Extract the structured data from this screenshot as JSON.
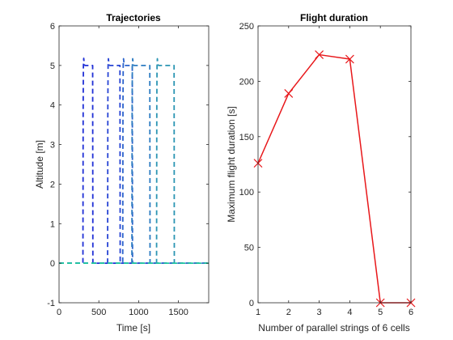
{
  "chart_data": [
    {
      "type": "line",
      "title": "Trajectories",
      "xlabel": "Time [s]",
      "ylabel": "Altitude [m]",
      "xlim": [
        0,
        1880
      ],
      "ylim": [
        -1,
        6
      ],
      "xticks": [
        0,
        500,
        1000,
        1500
      ],
      "yticks": [
        -1,
        0,
        1,
        2,
        3,
        4,
        5,
        6
      ],
      "line_style": "dashed",
      "grid": false,
      "series": [
        {
          "color": "#1f2fd6",
          "x": [
            0,
            300,
            303,
            306,
            310,
            318,
            326,
            332,
            422,
            425,
            1880
          ],
          "y": [
            0,
            0,
            4.0,
            5.0,
            5.18,
            5.02,
            5.0,
            5.0,
            5.0,
            0,
            0
          ]
        },
        {
          "color": "#2744d4",
          "x": [
            0,
            610,
            613,
            616,
            620,
            628,
            636,
            642,
            765,
            768,
            1880
          ],
          "y": [
            0,
            0,
            4.0,
            5.0,
            5.17,
            5.02,
            5.0,
            5.0,
            5.0,
            0,
            0
          ]
        },
        {
          "color": "#2a62cc",
          "x": [
            0,
            800,
            803,
            806,
            810,
            818,
            826,
            832,
            920,
            923,
            1880
          ],
          "y": [
            0,
            0,
            4.0,
            5.0,
            5.17,
            5.02,
            5.0,
            5.0,
            5.0,
            0,
            0
          ]
        },
        {
          "color": "#2d7cc2",
          "x": [
            0,
            915,
            918,
            921,
            925,
            933,
            941,
            947,
            1140,
            1143,
            1880
          ],
          "y": [
            0,
            0,
            4.0,
            5.0,
            5.17,
            5.02,
            5.0,
            5.0,
            5.0,
            0,
            0
          ]
        },
        {
          "color": "#2b95b3",
          "x": [
            0,
            1225,
            1228,
            1231,
            1235,
            1243,
            1251,
            1257,
            1445,
            1448,
            1880
          ],
          "y": [
            0,
            0,
            4.0,
            5.0,
            5.17,
            5.02,
            5.0,
            5.0,
            5.0,
            0,
            0
          ]
        },
        {
          "color": "#22c8a0",
          "x": [
            0,
            1880
          ],
          "y": [
            0,
            0
          ]
        }
      ]
    },
    {
      "type": "line",
      "title": "Flight duration",
      "xlabel": "Number of parallel strings of 6 cells",
      "ylabel": "Maximum flight duration [s]",
      "xlim": [
        1,
        6
      ],
      "ylim": [
        0,
        250
      ],
      "xticks": [
        1,
        2,
        3,
        4,
        5,
        6
      ],
      "yticks": [
        0,
        50,
        100,
        150,
        200,
        250
      ],
      "grid": false,
      "series": [
        {
          "color": "#e8171a",
          "marker": "x",
          "x": [
            1,
            2,
            3,
            4,
            5,
            6
          ],
          "y": [
            126,
            189,
            224,
            220,
            0,
            0
          ]
        }
      ]
    }
  ]
}
